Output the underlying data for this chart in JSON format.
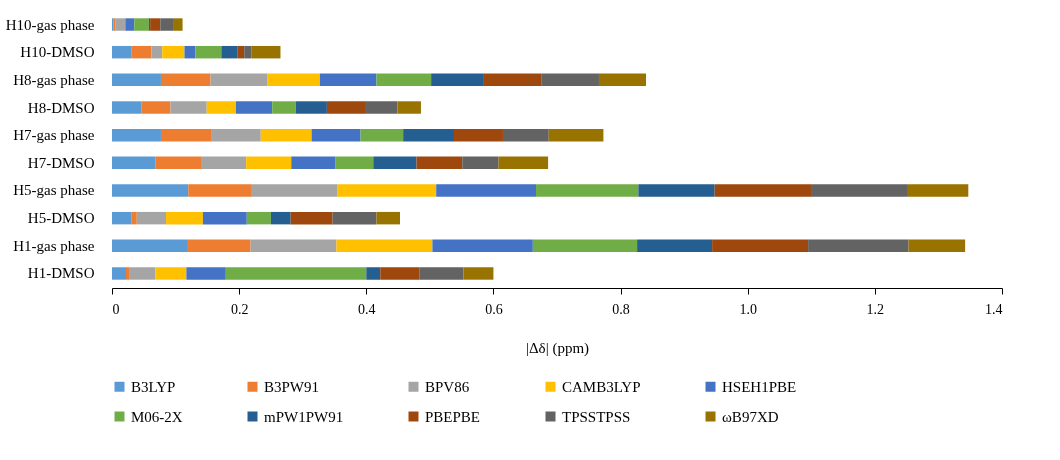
{
  "chart_data": {
    "type": "bar",
    "orientation": "horizontal",
    "stacked": true,
    "xlabel": "|Δδ| (ppm)",
    "legend": "bottom",
    "grid": false,
    "categories": [
      "H10-gas phase",
      "H10-DMSO",
      "H8-gas phase",
      "H8-DMSO",
      "H7-gas phase",
      "H7-DMSO",
      "H5-gas phase",
      "H5-DMSO",
      "H1-gas phase",
      "H1-DMSO"
    ],
    "xlim": [
      0,
      1.4
    ],
    "xticks": [
      0,
      0.2,
      0.4,
      0.6,
      0.8,
      {
        "value": 1,
        "label": "1.0"
      },
      1.2,
      1.4
    ],
    "series": [
      {
        "name": "B3LYP",
        "color": "#5b9bd5",
        "values": [
          0.002,
          0.031,
          0.077,
          0.046,
          0.077,
          0.068,
          0.12,
          0.031,
          0.118,
          0.022
        ]
      },
      {
        "name": "B3PW91",
        "color": "#ed7d31",
        "values": [
          0.003,
          0.031,
          0.078,
          0.046,
          0.08,
          0.072,
          0.1,
          0.008,
          0.1,
          0.006
        ]
      },
      {
        "name": "BPV86",
        "color": "#a5a5a5",
        "values": [
          0.016,
          0.017,
          0.089,
          0.057,
          0.077,
          0.071,
          0.135,
          0.046,
          0.135,
          0.04
        ]
      },
      {
        "name": "CAMB3LYP",
        "color": "#ffc000",
        "values": [
          0,
          0.035,
          0.083,
          0.046,
          0.08,
          0.071,
          0.155,
          0.058,
          0.151,
          0.049
        ]
      },
      {
        "name": "HSEH1PBE",
        "color": "#4472c4",
        "values": [
          0.014,
          0.017,
          0.089,
          0.057,
          0.077,
          0.069,
          0.157,
          0.069,
          0.158,
          0.062
        ]
      },
      {
        "name": "M06-2X",
        "color": "#70ad47",
        "values": [
          0.023,
          0.041,
          0.086,
          0.037,
          0.067,
          0.06,
          0.161,
          0.038,
          0.164,
          0.221
        ]
      },
      {
        "name": "mPW1PW91",
        "color": "#255e91",
        "values": [
          0.002,
          0.025,
          0.083,
          0.049,
          0.08,
          0.068,
          0.12,
          0.031,
          0.118,
          0.022
        ]
      },
      {
        "name": "PBEPBE",
        "color": "#9e480e",
        "values": [
          0.016,
          0.011,
          0.091,
          0.06,
          0.077,
          0.072,
          0.153,
          0.066,
          0.151,
          0.062
        ]
      },
      {
        "name": "TPSSTPSS",
        "color": "#636363",
        "values": [
          0.02,
          0.011,
          0.09,
          0.051,
          0.072,
          0.057,
          0.151,
          0.069,
          0.158,
          0.069
        ]
      },
      {
        "name": "ωB97XD",
        "color": "#997300",
        "values": [
          0.015,
          0.046,
          0.074,
          0.037,
          0.086,
          0.078,
          0.095,
          0.037,
          0.089,
          0.047
        ]
      }
    ]
  }
}
